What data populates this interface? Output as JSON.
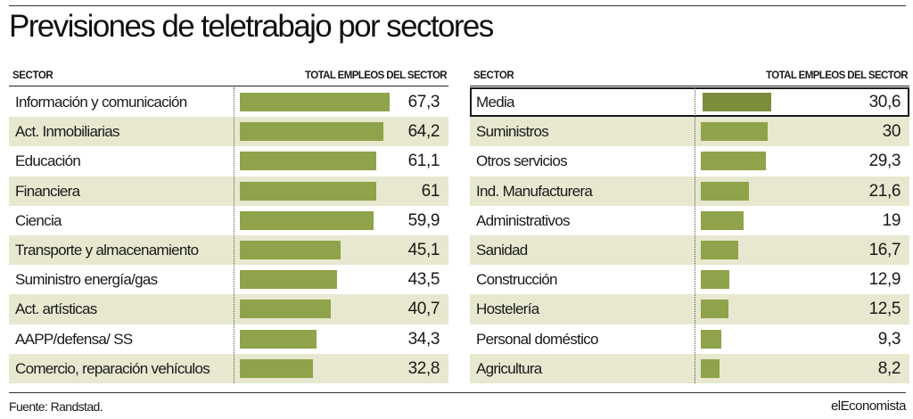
{
  "title": "Previsiones de teletrabajo por sectores",
  "source": "Fuente: Randstad.",
  "brand": "elEconomista",
  "colors": {
    "bar": "#8fa34a",
    "bar_highlight": "#7c8d3c",
    "row_shade": "#e7e8cf"
  },
  "chart_data": [
    {
      "type": "bar",
      "orientation": "horizontal",
      "title": "",
      "xlabel": "TOTAL EMPLEOS DEL SECTOR",
      "ylabel": "SECTOR",
      "xlim": [
        0,
        70
      ],
      "categories": [
        "Información y comunicación",
        "Act. Inmobiliarias",
        "Educación",
        "Financiera",
        "Ciencia",
        "Transporte y almacenamiento",
        "Suministro energía/gas",
        "Act. artísticas",
        "AAPP/defensa/ SS",
        "Comercio, reparación vehículos"
      ],
      "values": [
        67.3,
        64.2,
        61.1,
        61,
        59.9,
        45.1,
        43.5,
        40.7,
        34.3,
        32.8
      ],
      "value_labels": [
        "67,3",
        "64,2",
        "61,1",
        "61",
        "59,9",
        "45,1",
        "43,5",
        "40,7",
        "34,3",
        "32,8"
      ]
    },
    {
      "type": "bar",
      "orientation": "horizontal",
      "title": "",
      "xlabel": "TOTAL EMPLEOS DEL SECTOR",
      "ylabel": "SECTOR",
      "xlim": [
        0,
        70
      ],
      "categories": [
        "Media",
        "Suministros",
        "Otros servicios",
        "Ind. Manufacturera",
        "Administrativos",
        "Sanidad",
        "Construcción",
        "Hostelería",
        "Personal doméstico",
        "Agricultura"
      ],
      "values": [
        30.6,
        30,
        29.3,
        21.6,
        19,
        16.7,
        12.9,
        12.5,
        9.3,
        8.2
      ],
      "value_labels": [
        "30,6",
        "30",
        "29,3",
        "21,6",
        "19",
        "16,7",
        "12,9",
        "12,5",
        "9,3",
        "8,2"
      ],
      "highlighted": "Media"
    }
  ]
}
